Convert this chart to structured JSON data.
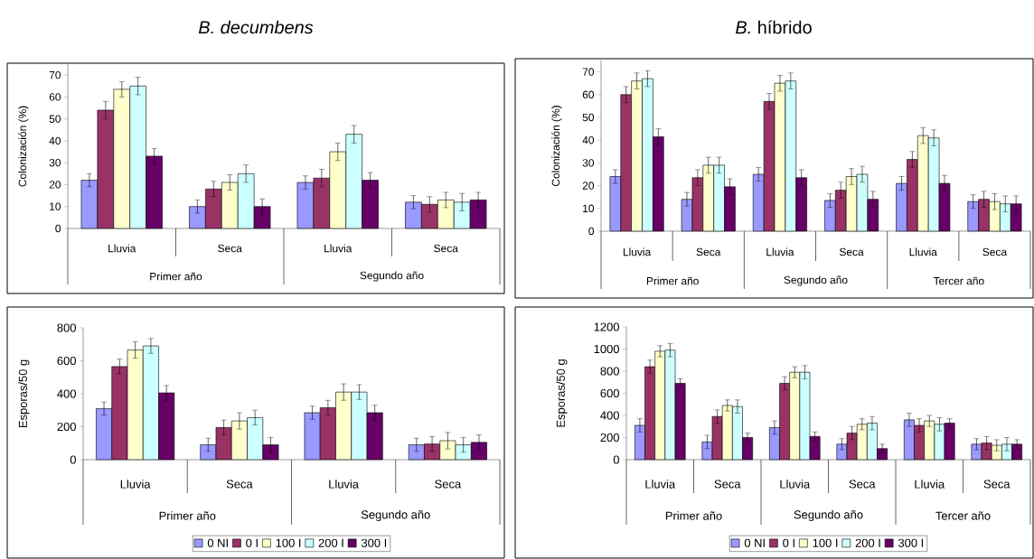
{
  "chart_data": [
    {
      "type": "bar",
      "title": "*B. decumbens*",
      "ylabel": "Colonización (%)",
      "categories": [
        "Lluvia",
        "Seca",
        "Lluvia",
        "Seca"
      ],
      "annotations": [
        "Primer año",
        "Segundo año"
      ],
      "ylim": [
        0,
        75
      ],
      "yticks": [
        0,
        10,
        20,
        30,
        40,
        50,
        60,
        70
      ],
      "legend": false,
      "series": [
        {
          "color": "#9999ff",
          "values": [
            22,
            10,
            21,
            12
          ],
          "errors": [
            3,
            3,
            3,
            3
          ]
        },
        {
          "color": "#993366",
          "values": [
            54,
            18,
            23,
            11
          ],
          "errors": [
            4,
            3.5,
            4,
            3.5
          ]
        },
        {
          "color": "#ffffcc",
          "values": [
            63.5,
            21,
            35,
            13
          ],
          "errors": [
            3.5,
            3.5,
            4,
            3.5
          ]
        },
        {
          "color": "#ccffff",
          "values": [
            65,
            25,
            43,
            12
          ],
          "errors": [
            4,
            4,
            4,
            4
          ]
        },
        {
          "color": "#660066",
          "values": [
            33,
            10,
            22,
            13
          ],
          "errors": [
            3.5,
            3.5,
            3.5,
            3.5
          ]
        }
      ]
    },
    {
      "type": "bar",
      "title": "*B.* híbrido",
      "ylabel": "Colonización (%)",
      "categories": [
        "Lluvia",
        "Seca",
        "Lluvia",
        "Seca",
        "Lluvia",
        "Seca"
      ],
      "annotations": [
        "Primer año",
        "Segundo año",
        "Tercer año"
      ],
      "ylim": [
        0,
        75
      ],
      "yticks": [
        0,
        10,
        20,
        30,
        40,
        50,
        60,
        70
      ],
      "legend": false,
      "series": [
        {
          "color": "#9999ff",
          "values": [
            24,
            14,
            25,
            13.5,
            21,
            13
          ],
          "errors": [
            3,
            3,
            3,
            3,
            3,
            3
          ]
        },
        {
          "color": "#993366",
          "values": [
            60,
            23.5,
            57,
            18,
            31.5,
            14
          ],
          "errors": [
            3.5,
            3.5,
            3.5,
            3.5,
            3.5,
            3.5
          ]
        },
        {
          "color": "#ffffcc",
          "values": [
            66,
            29,
            65,
            24,
            42,
            13
          ],
          "errors": [
            3.5,
            3.5,
            3.5,
            3.5,
            3.5,
            3.5
          ]
        },
        {
          "color": "#ccffff",
          "values": [
            67,
            29,
            66,
            25,
            41,
            12
          ],
          "errors": [
            3.5,
            3.5,
            3.5,
            3.5,
            3.5,
            3.5
          ]
        },
        {
          "color": "#660066",
          "values": [
            41.5,
            19.5,
            23.5,
            14,
            21,
            12
          ],
          "errors": [
            3.5,
            3.5,
            3.5,
            3.5,
            3.5,
            3.5
          ]
        }
      ]
    },
    {
      "type": "bar",
      "ylabel": "Esporas/50 g",
      "categories": [
        "Lluvia",
        "Seca",
        "Lluvia",
        "Seca"
      ],
      "annotations": [
        "Primer año",
        "Segundo año"
      ],
      "ylim": [
        0,
        800
      ],
      "yticks": [
        0,
        200,
        400,
        600,
        800
      ],
      "legend": "bottom",
      "series": [
        {
          "name": "0 NI",
          "color": "#9999ff",
          "values": [
            310,
            90,
            285,
            90
          ],
          "errors": [
            40,
            40,
            40,
            40
          ]
        },
        {
          "name": "0 I",
          "color": "#993366",
          "values": [
            565,
            195,
            315,
            95
          ],
          "errors": [
            45,
            45,
            45,
            45
          ]
        },
        {
          "name": "100 I",
          "color": "#ffffcc",
          "values": [
            665,
            235,
            410,
            115
          ],
          "errors": [
            50,
            50,
            50,
            50
          ]
        },
        {
          "name": "200 I",
          "color": "#ccffff",
          "values": [
            690,
            255,
            410,
            90
          ],
          "errors": [
            45,
            45,
            45,
            45
          ]
        },
        {
          "name": "300 I",
          "color": "#660066",
          "values": [
            405,
            90,
            285,
            105
          ],
          "errors": [
            45,
            45,
            45,
            45
          ]
        }
      ]
    },
    {
      "type": "bar",
      "ylabel": "Esporas/50 g",
      "categories": [
        "Lluvia",
        "Seca",
        "Lluvia",
        "Seca",
        "Lluvia",
        "Seca"
      ],
      "annotations": [
        "Primer año",
        "Segundo año",
        "Tercer año"
      ],
      "ylim": [
        0,
        1200
      ],
      "yticks": [
        0,
        200,
        400,
        600,
        800,
        1000,
        1200
      ],
      "legend": "bottom",
      "series": [
        {
          "name": "0 NI",
          "color": "#9999ff",
          "values": [
            310,
            160,
            290,
            140,
            360,
            140
          ],
          "errors": [
            60,
            60,
            60,
            50,
            60,
            50
          ]
        },
        {
          "name": "0 I",
          "color": "#993366",
          "values": [
            840,
            390,
            690,
            240,
            310,
            150
          ],
          "errors": [
            60,
            60,
            60,
            60,
            60,
            60
          ]
        },
        {
          "name": "100 I",
          "color": "#ffffcc",
          "values": [
            980,
            490,
            790,
            320,
            350,
            130
          ],
          "errors": [
            50,
            50,
            50,
            50,
            50,
            50
          ]
        },
        {
          "name": "200 I",
          "color": "#ccffff",
          "values": [
            990,
            480,
            790,
            330,
            320,
            140
          ],
          "errors": [
            60,
            60,
            60,
            60,
            60,
            60
          ]
        },
        {
          "name": "300 I",
          "color": "#660066",
          "values": [
            690,
            200,
            210,
            100,
            330,
            140
          ],
          "errors": [
            40,
            40,
            40,
            40,
            40,
            40
          ]
        }
      ]
    }
  ]
}
